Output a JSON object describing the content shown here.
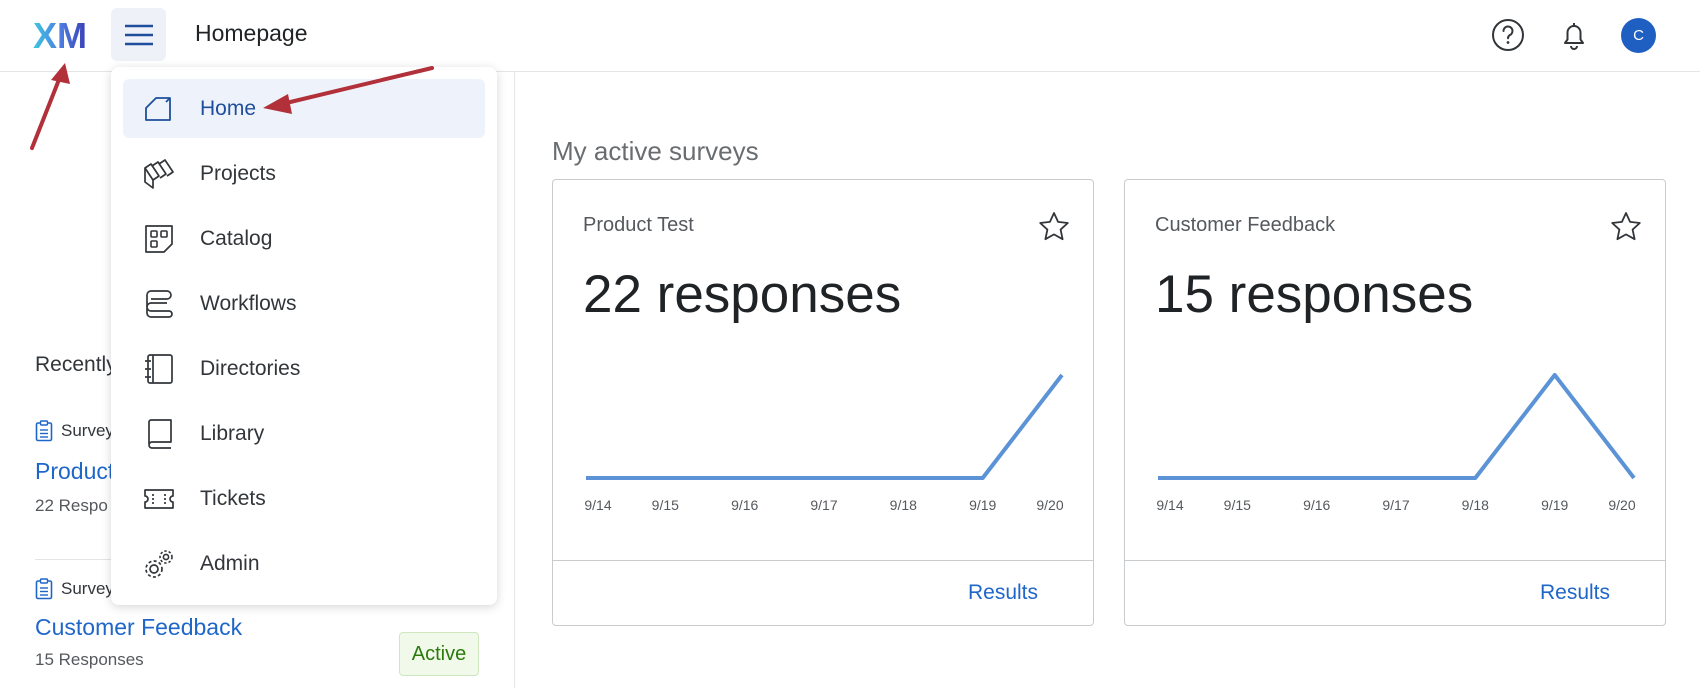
{
  "header": {
    "logo_text": "XM",
    "page_title": "Homepage",
    "avatar_initial": "C",
    "icons": [
      "menu-icon",
      "help-icon",
      "bell-icon"
    ]
  },
  "nav_menu": {
    "items": [
      {
        "label": "Home",
        "icon": "home-icon",
        "active": true
      },
      {
        "label": "Projects",
        "icon": "projects-icon"
      },
      {
        "label": "Catalog",
        "icon": "catalog-icon"
      },
      {
        "label": "Workflows",
        "icon": "workflows-icon"
      },
      {
        "label": "Directories",
        "icon": "directories-icon"
      },
      {
        "label": "Library",
        "icon": "library-icon"
      },
      {
        "label": "Tickets",
        "icon": "tickets-icon"
      },
      {
        "label": "Admin",
        "icon": "admin-gear-icon"
      }
    ]
  },
  "recent": {
    "title": "Recently",
    "items": [
      {
        "type": "Survey",
        "name": "Product",
        "count": "22 Respo"
      },
      {
        "type": "Survey",
        "name": "Customer Feedback",
        "count": "15 Responses",
        "status": "Active"
      }
    ]
  },
  "surveys": {
    "section_title": "My active surveys",
    "results_label": "Results",
    "cards": [
      {
        "name": "Product Test",
        "count": "22 responses"
      },
      {
        "name": "Customer Feedback",
        "count": "15 responses"
      }
    ]
  },
  "chart_data": [
    {
      "type": "line",
      "x": [
        "9/14",
        "9/15",
        "9/16",
        "9/17",
        "9/18",
        "9/19",
        "9/20"
      ],
      "series": [
        {
          "values": [
            0,
            0,
            0,
            0,
            0,
            0,
            22
          ]
        }
      ],
      "ylim": [
        0,
        22
      ],
      "grid": false,
      "color": "#5b93d6"
    },
    {
      "type": "line",
      "x": [
        "9/14",
        "9/15",
        "9/16",
        "9/17",
        "9/18",
        "9/19",
        "9/20"
      ],
      "series": [
        {
          "values": [
            0,
            0,
            0,
            0,
            0,
            15,
            0
          ]
        }
      ],
      "ylim": [
        0,
        15
      ],
      "grid": false,
      "color": "#5b93d6"
    }
  ],
  "colors": {
    "accent": "#1f66c9",
    "line": "#5b93d6",
    "annotation": "#b2303a"
  }
}
